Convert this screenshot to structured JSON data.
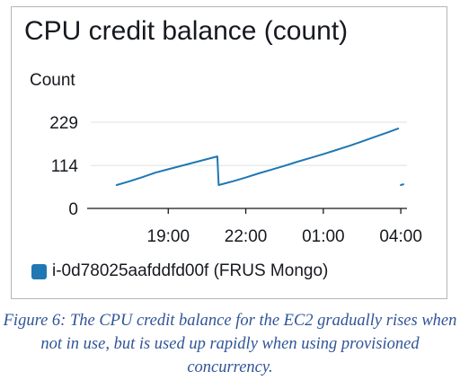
{
  "widget": {
    "title": "CPU credit balance (count)",
    "y_unit": "Count",
    "legend_label": "i-0d78025aafddfd00f (FRUS Mongo)"
  },
  "caption": "Figure 6: The CPU credit balance for the EC2 gradually rises when not in use, but is used up rapidly when using provisioned concurrency.",
  "colors": {
    "series": "#1f77b4",
    "gridline": "#e9ebed",
    "axis": "#16191f",
    "caption": "#2f5496"
  },
  "chart_data": {
    "type": "line",
    "title": "CPU credit balance (count)",
    "ylabel": "Count",
    "xlabel": "",
    "x_ticks": [
      "19:00",
      "22:00",
      "01:00",
      "04:00"
    ],
    "x_tick_hours": [
      19,
      22,
      25,
      28
    ],
    "y_ticks": [
      0,
      114,
      229
    ],
    "xlim": [
      16,
      28.1
    ],
    "ylim": [
      0,
      229
    ],
    "grid": true,
    "legend": "bottom-left",
    "series": [
      {
        "name": "i-0d78025aafddfd00f (FRUS Mongo)",
        "segments": [
          [
            [
              17.0,
              62
            ],
            [
              17.5,
              72
            ],
            [
              18.0,
              83
            ],
            [
              18.5,
              95
            ],
            [
              19.0,
              104
            ],
            [
              19.5,
              113
            ],
            [
              20.0,
              122
            ],
            [
              20.5,
              131
            ],
            [
              20.9,
              138
            ],
            [
              20.95,
              62
            ],
            [
              21.5,
              72
            ],
            [
              22.0,
              82
            ],
            [
              22.5,
              93
            ],
            [
              23.0,
              103
            ],
            [
              23.5,
              113
            ],
            [
              24.0,
              124
            ],
            [
              24.5,
              134
            ],
            [
              25.0,
              144
            ],
            [
              25.5,
              155
            ],
            [
              26.0,
              166
            ],
            [
              26.5,
              178
            ],
            [
              27.0,
              190
            ],
            [
              27.5,
              202
            ],
            [
              27.9,
              212
            ]
          ],
          [
            [
              28.0,
              62
            ],
            [
              28.1,
              64
            ]
          ]
        ]
      }
    ]
  }
}
